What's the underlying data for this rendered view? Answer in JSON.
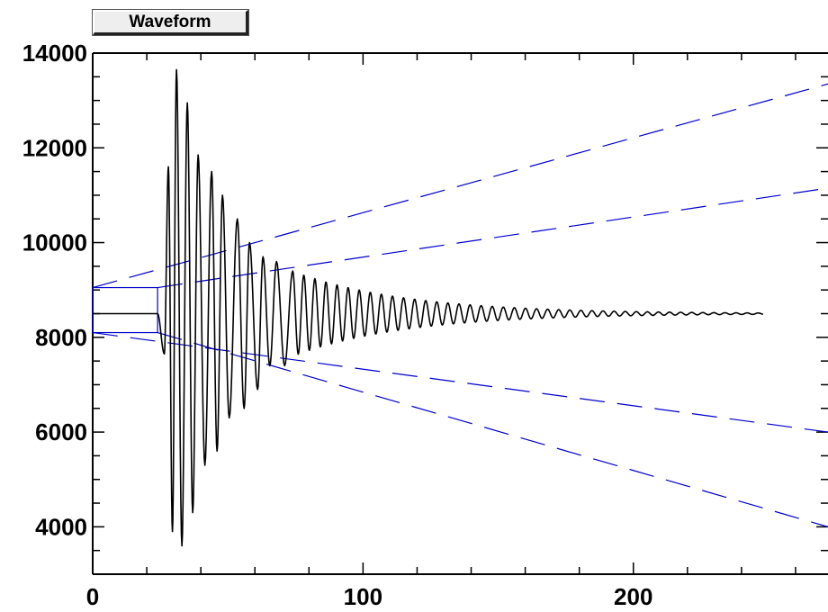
{
  "window": {
    "title_button": "Waveform"
  },
  "colors": {
    "waveform": "#000000",
    "zoom_guides": "#0000cc",
    "axis": "#000000",
    "background": "#ffffff"
  },
  "chart_data": {
    "type": "line",
    "title": "Waveform",
    "xlabel": "",
    "ylabel": "",
    "xlim": [
      0,
      272
    ],
    "ylim": [
      3000,
      14000
    ],
    "x_ticks": [
      0,
      100,
      200
    ],
    "x_tick_labels": [
      "0",
      "100",
      "200"
    ],
    "y_ticks": [
      4000,
      6000,
      8000,
      10000,
      12000,
      14000
    ],
    "y_tick_labels": [
      "4000",
      "6000",
      "8000",
      "10000",
      "12000",
      "14000"
    ],
    "grid": false,
    "series": [
      {
        "baseline": 8500,
        "x_end": 248,
        "onset_x": 24,
        "peaks": [
          {
            "x": 26.5,
            "y": 7650
          },
          {
            "x": 28,
            "y": 11600
          },
          {
            "x": 29.5,
            "y": 3900
          },
          {
            "x": 31,
            "y": 13650
          },
          {
            "x": 33,
            "y": 3600
          },
          {
            "x": 35,
            "y": 12950
          },
          {
            "x": 37,
            "y": 4300
          },
          {
            "x": 39,
            "y": 11850
          },
          {
            "x": 41.5,
            "y": 5300
          },
          {
            "x": 44,
            "y": 11500
          },
          {
            "x": 46,
            "y": 5600
          },
          {
            "x": 48,
            "y": 11000
          },
          {
            "x": 50.5,
            "y": 6300
          },
          {
            "x": 53.5,
            "y": 10500
          },
          {
            "x": 56,
            "y": 6500
          },
          {
            "x": 58,
            "y": 10000
          },
          {
            "x": 61,
            "y": 6900
          },
          {
            "x": 63,
            "y": 9700
          },
          {
            "x": 65.5,
            "y": 7400
          },
          {
            "x": 68,
            "y": 9600
          },
          {
            "x": 71,
            "y": 7400
          },
          {
            "x": 74,
            "y": 9400
          }
        ],
        "tail_start_x": 74,
        "tail_amplitude": 900,
        "tail_period": 4.1,
        "tail_decay": 0.024
      }
    ],
    "annotations": {
      "zoom_box": {
        "x": [
          0,
          24
        ],
        "y": [
          8100,
          9050
        ]
      },
      "guide_lines_style": "dashed"
    }
  }
}
